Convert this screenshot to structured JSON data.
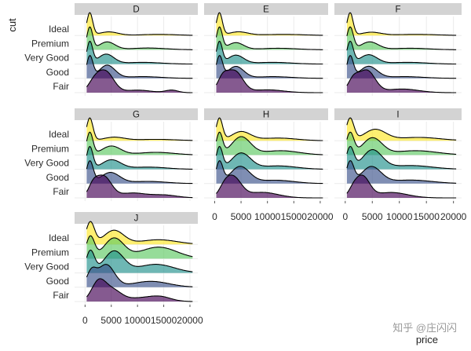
{
  "chart_data": {
    "type": "ridgeline",
    "facet_variable": "color",
    "xlabel": "price",
    "ylabel": "cut",
    "xlim": [
      -2000,
      21500
    ],
    "x_ticks": [
      0,
      5000,
      10000,
      15000,
      20000
    ],
    "x_tick_labels": [
      "0",
      "5000",
      "10000",
      "15000",
      "20000"
    ],
    "categories": [
      "Ideal",
      "Premium",
      "Very Good",
      "Good",
      "Fair"
    ],
    "category_fill_colors": {
      "Ideal": "#FDE725",
      "Premium": "#5EC962",
      "Very Good": "#21918C",
      "Good": "#3B528B",
      "Fair": "#440154"
    },
    "fill_opacity": 0.65,
    "grid": true,
    "facets": [
      {
        "label": "D",
        "series": [
          {
            "cut": "Ideal",
            "peaks": [
              {
                "mu": 900,
                "sd": 550,
                "h": 1.0
              },
              {
                "mu": 4500,
                "sd": 1800,
                "h": 0.16
              },
              {
                "mu": 14000,
                "sd": 3500,
                "h": 0.05
              }
            ]
          },
          {
            "cut": "Premium",
            "peaks": [
              {
                "mu": 900,
                "sd": 550,
                "h": 1.0
              },
              {
                "mu": 4200,
                "sd": 1500,
                "h": 0.35
              },
              {
                "mu": 12000,
                "sd": 3500,
                "h": 0.08
              }
            ]
          },
          {
            "cut": "Very Good",
            "peaks": [
              {
                "mu": 900,
                "sd": 550,
                "h": 1.0
              },
              {
                "mu": 4000,
                "sd": 1500,
                "h": 0.45
              },
              {
                "mu": 11000,
                "sd": 3500,
                "h": 0.08
              }
            ]
          },
          {
            "cut": "Good",
            "peaks": [
              {
                "mu": 900,
                "sd": 600,
                "h": 1.0
              },
              {
                "mu": 4200,
                "sd": 1500,
                "h": 0.6
              },
              {
                "mu": 11000,
                "sd": 3500,
                "h": 0.08
              }
            ]
          },
          {
            "cut": "Fair",
            "peaks": [
              {
                "mu": 1800,
                "sd": 1200,
                "h": 0.5
              },
              {
                "mu": 4000,
                "sd": 1500,
                "h": 0.95
              },
              {
                "mu": 10000,
                "sd": 2500,
                "h": 0.12
              },
              {
                "mu": 16500,
                "sd": 1200,
                "h": 0.12
              }
            ]
          }
        ]
      },
      {
        "label": "E",
        "series": [
          {
            "cut": "Ideal",
            "peaks": [
              {
                "mu": 900,
                "sd": 550,
                "h": 1.0
              },
              {
                "mu": 4500,
                "sd": 1800,
                "h": 0.16
              },
              {
                "mu": 13000,
                "sd": 4000,
                "h": 0.05
              }
            ]
          },
          {
            "cut": "Premium",
            "peaks": [
              {
                "mu": 900,
                "sd": 550,
                "h": 1.0
              },
              {
                "mu": 4000,
                "sd": 1500,
                "h": 0.32
              },
              {
                "mu": 12000,
                "sd": 3500,
                "h": 0.07
              }
            ]
          },
          {
            "cut": "Very Good",
            "peaks": [
              {
                "mu": 900,
                "sd": 550,
                "h": 1.0
              },
              {
                "mu": 4000,
                "sd": 1500,
                "h": 0.4
              },
              {
                "mu": 11000,
                "sd": 3500,
                "h": 0.08
              }
            ]
          },
          {
            "cut": "Good",
            "peaks": [
              {
                "mu": 900,
                "sd": 600,
                "h": 1.0
              },
              {
                "mu": 4000,
                "sd": 1500,
                "h": 0.55
              },
              {
                "mu": 11000,
                "sd": 3500,
                "h": 0.08
              }
            ]
          },
          {
            "cut": "Fair",
            "peaks": [
              {
                "mu": 1500,
                "sd": 1000,
                "h": 0.55
              },
              {
                "mu": 3800,
                "sd": 1500,
                "h": 0.9
              },
              {
                "mu": 10000,
                "sd": 3000,
                "h": 0.12
              }
            ]
          }
        ]
      },
      {
        "label": "F",
        "series": [
          {
            "cut": "Ideal",
            "peaks": [
              {
                "mu": 900,
                "sd": 550,
                "h": 1.0
              },
              {
                "mu": 4800,
                "sd": 1800,
                "h": 0.14
              },
              {
                "mu": 13000,
                "sd": 4000,
                "h": 0.05
              }
            ]
          },
          {
            "cut": "Premium",
            "peaks": [
              {
                "mu": 900,
                "sd": 600,
                "h": 1.0
              },
              {
                "mu": 4500,
                "sd": 1600,
                "h": 0.35
              },
              {
                "mu": 12000,
                "sd": 3500,
                "h": 0.07
              }
            ]
          },
          {
            "cut": "Very Good",
            "peaks": [
              {
                "mu": 900,
                "sd": 600,
                "h": 1.0
              },
              {
                "mu": 4300,
                "sd": 1600,
                "h": 0.42
              },
              {
                "mu": 11500,
                "sd": 3500,
                "h": 0.08
              }
            ]
          },
          {
            "cut": "Good",
            "peaks": [
              {
                "mu": 900,
                "sd": 600,
                "h": 1.0
              },
              {
                "mu": 4300,
                "sd": 1600,
                "h": 0.55
              },
              {
                "mu": 11000,
                "sd": 3500,
                "h": 0.08
              }
            ]
          },
          {
            "cut": "Fair",
            "peaks": [
              {
                "mu": 1500,
                "sd": 1000,
                "h": 0.5
              },
              {
                "mu": 4000,
                "sd": 1500,
                "h": 0.9
              },
              {
                "mu": 10500,
                "sd": 3000,
                "h": 0.15
              }
            ]
          }
        ]
      },
      {
        "label": "G",
        "series": [
          {
            "cut": "Ideal",
            "peaks": [
              {
                "mu": 900,
                "sd": 600,
                "h": 1.0
              },
              {
                "mu": 5500,
                "sd": 2000,
                "h": 0.15
              },
              {
                "mu": 13500,
                "sd": 4000,
                "h": 0.06
              }
            ]
          },
          {
            "cut": "Premium",
            "peaks": [
              {
                "mu": 900,
                "sd": 600,
                "h": 1.0
              },
              {
                "mu": 5000,
                "sd": 1800,
                "h": 0.4
              },
              {
                "mu": 13500,
                "sd": 3500,
                "h": 0.12
              }
            ]
          },
          {
            "cut": "Very Good",
            "peaks": [
              {
                "mu": 900,
                "sd": 600,
                "h": 1.0
              },
              {
                "mu": 5000,
                "sd": 1800,
                "h": 0.42
              },
              {
                "mu": 12000,
                "sd": 3500,
                "h": 0.1
              }
            ]
          },
          {
            "cut": "Good",
            "peaks": [
              {
                "mu": 900,
                "sd": 650,
                "h": 1.0
              },
              {
                "mu": 4800,
                "sd": 1800,
                "h": 0.5
              },
              {
                "mu": 12000,
                "sd": 3500,
                "h": 0.1
              }
            ]
          },
          {
            "cut": "Fair",
            "peaks": [
              {
                "mu": 1500,
                "sd": 900,
                "h": 0.4
              },
              {
                "mu": 3500,
                "sd": 1500,
                "h": 0.9
              },
              {
                "mu": 9000,
                "sd": 2500,
                "h": 0.2
              },
              {
                "mu": 15000,
                "sd": 2500,
                "h": 0.12
              }
            ]
          }
        ]
      },
      {
        "label": "H",
        "series": [
          {
            "cut": "Ideal",
            "peaks": [
              {
                "mu": 900,
                "sd": 600,
                "h": 1.0
              },
              {
                "mu": 5000,
                "sd": 1800,
                "h": 0.4
              },
              {
                "mu": 12000,
                "sd": 3500,
                "h": 0.12
              }
            ]
          },
          {
            "cut": "Premium",
            "peaks": [
              {
                "mu": 900,
                "sd": 600,
                "h": 0.9
              },
              {
                "mu": 5000,
                "sd": 1800,
                "h": 0.75
              },
              {
                "mu": 12500,
                "sd": 3500,
                "h": 0.18
              }
            ]
          },
          {
            "cut": "Very Good",
            "peaks": [
              {
                "mu": 900,
                "sd": 600,
                "h": 0.95
              },
              {
                "mu": 5000,
                "sd": 1800,
                "h": 0.7
              },
              {
                "mu": 12000,
                "sd": 3500,
                "h": 0.15
              }
            ]
          },
          {
            "cut": "Good",
            "peaks": [
              {
                "mu": 900,
                "sd": 650,
                "h": 0.95
              },
              {
                "mu": 4800,
                "sd": 1800,
                "h": 0.75
              },
              {
                "mu": 11500,
                "sd": 3500,
                "h": 0.15
              }
            ]
          },
          {
            "cut": "Fair",
            "peaks": [
              {
                "mu": 1800,
                "sd": 1000,
                "h": 0.3
              },
              {
                "mu": 3500,
                "sd": 1500,
                "h": 0.9
              },
              {
                "mu": 9000,
                "sd": 3000,
                "h": 0.25
              }
            ]
          }
        ]
      },
      {
        "label": "I",
        "series": [
          {
            "cut": "Ideal",
            "peaks": [
              {
                "mu": 900,
                "sd": 700,
                "h": 1.0
              },
              {
                "mu": 5500,
                "sd": 2000,
                "h": 0.5
              },
              {
                "mu": 13500,
                "sd": 4000,
                "h": 0.15
              }
            ]
          },
          {
            "cut": "Premium",
            "peaks": [
              {
                "mu": 900,
                "sd": 700,
                "h": 0.9
              },
              {
                "mu": 5000,
                "sd": 1800,
                "h": 0.7
              },
              {
                "mu": 13000,
                "sd": 4000,
                "h": 0.18
              }
            ]
          },
          {
            "cut": "Very Good",
            "peaks": [
              {
                "mu": 900,
                "sd": 700,
                "h": 0.85
              },
              {
                "mu": 5000,
                "sd": 1800,
                "h": 0.75
              },
              {
                "mu": 12000,
                "sd": 4000,
                "h": 0.15
              }
            ]
          },
          {
            "cut": "Good",
            "peaks": [
              {
                "mu": 900,
                "sd": 700,
                "h": 0.9
              },
              {
                "mu": 4800,
                "sd": 1800,
                "h": 0.7
              },
              {
                "mu": 12000,
                "sd": 4000,
                "h": 0.15
              }
            ]
          },
          {
            "cut": "Fair",
            "peaks": [
              {
                "mu": 1500,
                "sd": 900,
                "h": 0.3
              },
              {
                "mu": 3200,
                "sd": 1300,
                "h": 0.95
              },
              {
                "mu": 8500,
                "sd": 3000,
                "h": 0.25
              }
            ]
          }
        ]
      },
      {
        "label": "J",
        "series": [
          {
            "cut": "Ideal",
            "peaks": [
              {
                "mu": 1000,
                "sd": 800,
                "h": 0.95
              },
              {
                "mu": 5500,
                "sd": 1900,
                "h": 0.6
              },
              {
                "mu": 14000,
                "sd": 3500,
                "h": 0.2
              }
            ]
          },
          {
            "cut": "Premium",
            "peaks": [
              {
                "mu": 1000,
                "sd": 800,
                "h": 0.75
              },
              {
                "mu": 5500,
                "sd": 1900,
                "h": 0.7
              },
              {
                "mu": 14000,
                "sd": 3500,
                "h": 0.4
              }
            ]
          },
          {
            "cut": "Very Good",
            "peaks": [
              {
                "mu": 1000,
                "sd": 800,
                "h": 0.75
              },
              {
                "mu": 5500,
                "sd": 1900,
                "h": 0.75
              },
              {
                "mu": 13500,
                "sd": 3500,
                "h": 0.3
              }
            ]
          },
          {
            "cut": "Good",
            "peaks": [
              {
                "mu": 1200,
                "sd": 900,
                "h": 0.6
              },
              {
                "mu": 4000,
                "sd": 1600,
                "h": 0.95
              },
              {
                "mu": 12500,
                "sd": 3500,
                "h": 0.25
              }
            ]
          },
          {
            "cut": "Fair",
            "peaks": [
              {
                "mu": 2500,
                "sd": 1300,
                "h": 0.75
              },
              {
                "mu": 5000,
                "sd": 1800,
                "h": 0.5
              },
              {
                "mu": 11000,
                "sd": 3000,
                "h": 0.15
              },
              {
                "mu": 14500,
                "sd": 2000,
                "h": 0.15
              }
            ]
          }
        ]
      }
    ]
  },
  "watermark": "知乎 @庄闪闪"
}
